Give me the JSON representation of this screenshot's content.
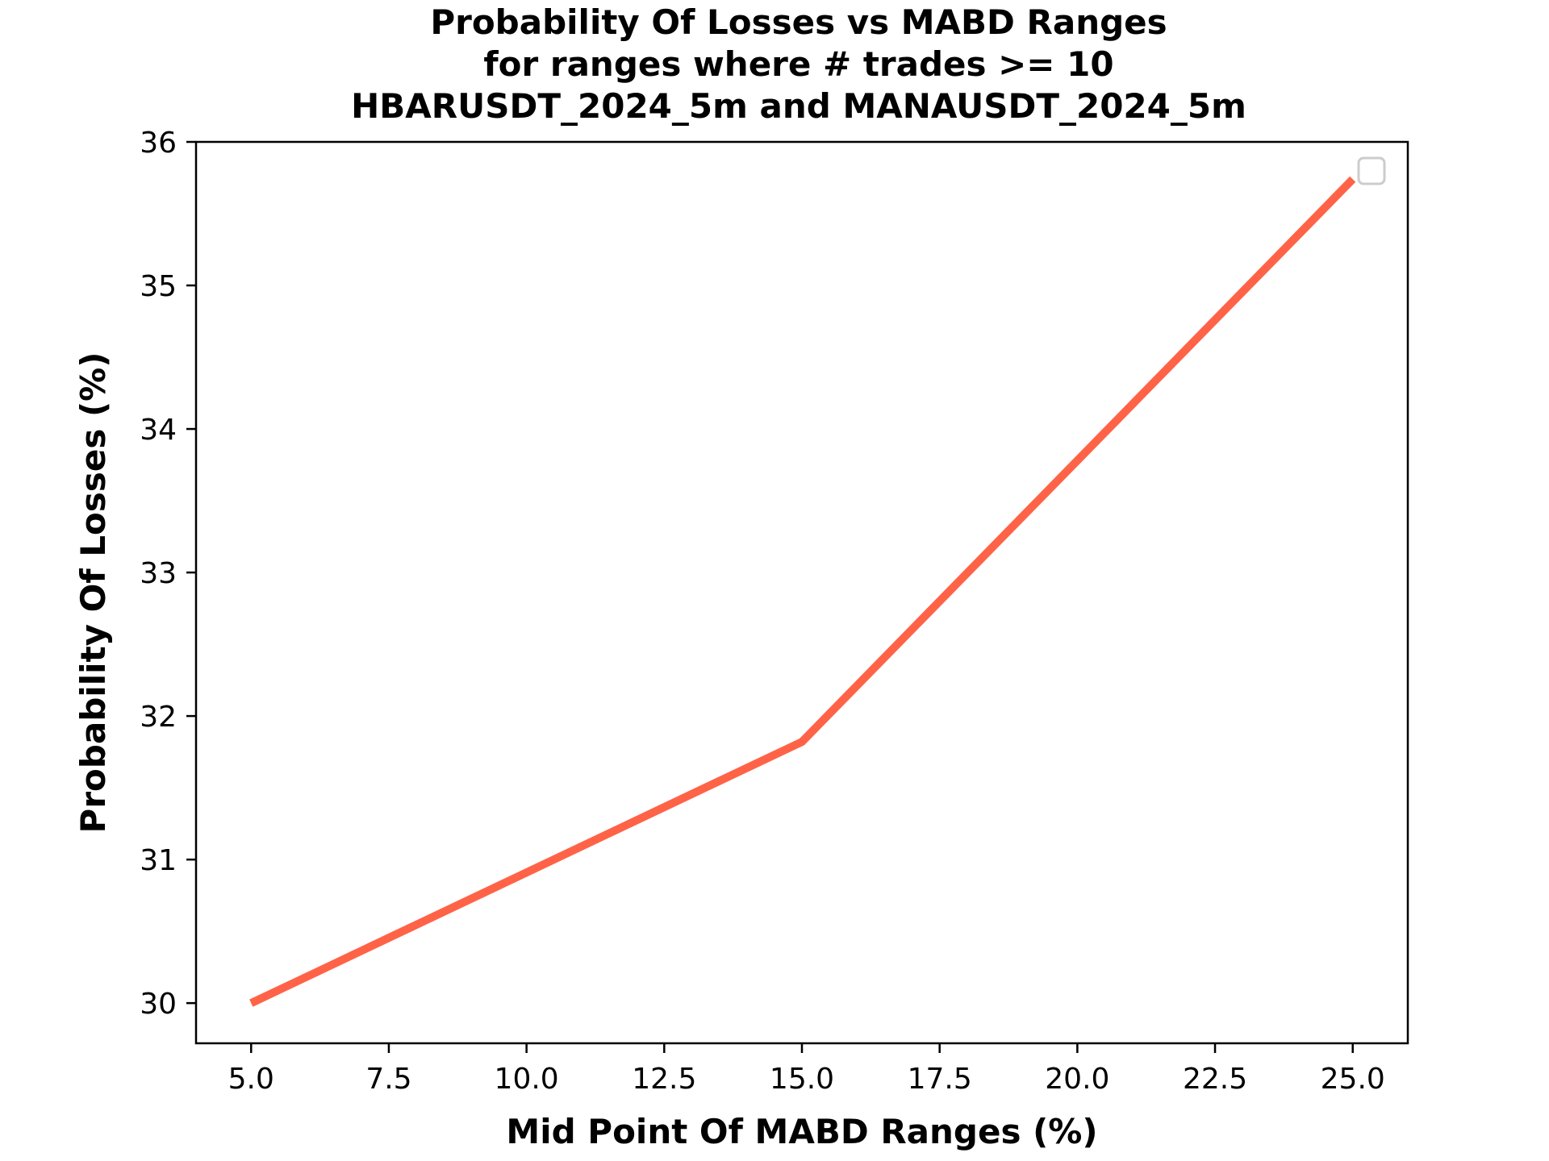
{
  "chart_data": {
    "type": "line",
    "title_lines": [
      "Probability Of Losses vs MABD Ranges",
      "for ranges where # trades >= 10",
      "HBARUSDT_2024_5m and MANAUSDT_2024_5m"
    ],
    "xlabel": "Mid Point Of MABD Ranges (%)",
    "ylabel": "Probability Of Losses (%)",
    "xlim": [
      4.0,
      26.0
    ],
    "ylim": [
      29.72,
      36.0
    ],
    "xticks": [
      5.0,
      7.5,
      10.0,
      12.5,
      15.0,
      17.5,
      20.0,
      22.5,
      25.0
    ],
    "xtick_labels": [
      "5.0",
      "7.5",
      "10.0",
      "12.5",
      "15.0",
      "17.5",
      "20.0",
      "22.5",
      "25.0"
    ],
    "yticks": [
      30,
      31,
      32,
      33,
      34,
      35,
      36
    ],
    "ytick_labels": [
      "30",
      "31",
      "32",
      "33",
      "34",
      "35",
      "36"
    ],
    "grid": false,
    "legend": {
      "placement": "top-right",
      "entries": []
    },
    "series": [
      {
        "color": "#ff6347",
        "x": [
          5.0,
          15.0,
          25.0
        ],
        "y": [
          30.0,
          31.82,
          35.74
        ]
      }
    ]
  }
}
